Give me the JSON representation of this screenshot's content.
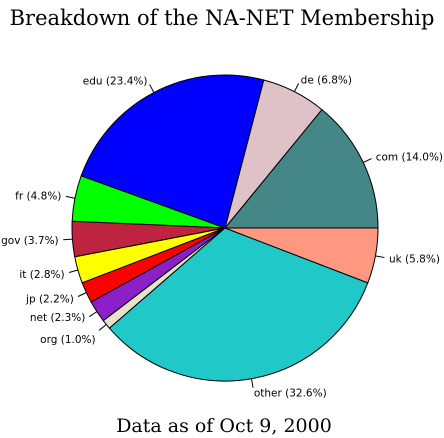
{
  "chart_data": {
    "type": "pie",
    "title": "Breakdown of the NA-NET Membership",
    "caption": "Data as of Oct 9, 2000",
    "start_angle_deg": 0,
    "direction": "counterclockwise",
    "slices": [
      {
        "label": "com (14.0%)",
        "value": 14.0,
        "color": "#458686"
      },
      {
        "label": "de (6.8%)",
        "value": 6.8,
        "color": "#dec2c8"
      },
      {
        "label": "edu (23.4%)",
        "value": 23.4,
        "color": "#0000ff"
      },
      {
        "label": "fr (4.8%)",
        "value": 4.8,
        "color": "#00ff00"
      },
      {
        "label": "gov (3.7%)",
        "value": 3.7,
        "color": "#be2440"
      },
      {
        "label": "it (2.8%)",
        "value": 2.8,
        "color": "#ffff00"
      },
      {
        "label": "jp (2.2%)",
        "value": 2.2,
        "color": "#ff0000"
      },
      {
        "label": "net (2.3%)",
        "value": 2.3,
        "color": "#8b20c8"
      },
      {
        "label": "org (1.0%)",
        "value": 1.0,
        "color": "#e6e2cd"
      },
      {
        "label": "other (32.6%)",
        "value": 32.6,
        "color": "#20c8c8"
      },
      {
        "label": "uk (5.8%)",
        "value": 5.8,
        "color": "#ff9880"
      }
    ]
  }
}
